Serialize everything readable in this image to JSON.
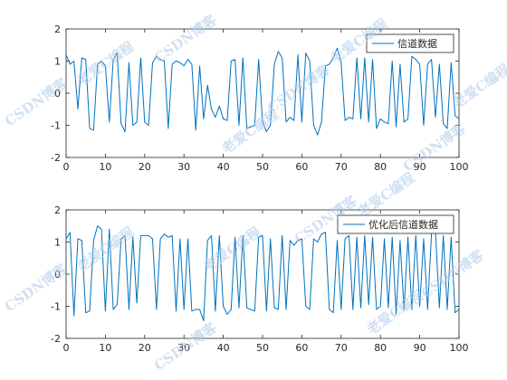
{
  "chart_data": [
    {
      "type": "line",
      "xlim": [
        0,
        100
      ],
      "ylim": [
        -2,
        2
      ],
      "xticks": [
        0,
        10,
        20,
        30,
        40,
        50,
        60,
        70,
        80,
        90,
        100
      ],
      "yticks": [
        -2,
        -1,
        0,
        1,
        2
      ],
      "grid": false,
      "legend_position": "top-right",
      "series": [
        {
          "name": "信道数据",
          "color": "#0072bd",
          "x": [
            0,
            1,
            2,
            3,
            4,
            5,
            6,
            7,
            8,
            9,
            10,
            11,
            12,
            13,
            14,
            15,
            16,
            17,
            18,
            19,
            20,
            21,
            22,
            23,
            24,
            25,
            26,
            27,
            28,
            29,
            30,
            31,
            32,
            33,
            34,
            35,
            36,
            37,
            38,
            39,
            40,
            41,
            42,
            43,
            44,
            45,
            46,
            47,
            48,
            49,
            50,
            51,
            52,
            53,
            54,
            55,
            56,
            57,
            58,
            59,
            60,
            61,
            62,
            63,
            64,
            65,
            66,
            67,
            68,
            69,
            70,
            71,
            72,
            73,
            74,
            75,
            76,
            77,
            78,
            79,
            80,
            81,
            82,
            83,
            84,
            85,
            86,
            87,
            88,
            89,
            90,
            91,
            92,
            93,
            94,
            95,
            96,
            97,
            98,
            99,
            100
          ],
          "y": [
            1.2,
            0.9,
            1.0,
            -0.5,
            1.1,
            1.05,
            -1.1,
            -1.15,
            0.9,
            1.0,
            0.85,
            -0.9,
            1.05,
            1.25,
            -0.95,
            -1.2,
            0.95,
            -1.0,
            -0.9,
            1.1,
            -0.9,
            -1.0,
            0.95,
            1.15,
            1.05,
            1.0,
            -1.1,
            0.9,
            1.0,
            0.95,
            0.85,
            1.05,
            0.9,
            -1.15,
            0.85,
            -0.8,
            0.25,
            -0.5,
            -0.75,
            -0.4,
            -0.8,
            -0.85,
            1.0,
            1.05,
            -1.0,
            1.1,
            -1.1,
            -1.05,
            -1.0,
            1.05,
            -0.9,
            -1.2,
            -1.0,
            0.9,
            1.3,
            1.1,
            -0.9,
            -0.75,
            -0.85,
            1.2,
            -0.9,
            1.25,
            1.0,
            -1.0,
            -1.3,
            -0.9,
            0.85,
            0.9,
            1.1,
            1.4,
            0.95,
            -0.85,
            -0.75,
            -0.8,
            1.1,
            -0.8,
            1.1,
            -0.9,
            1.05,
            -1.1,
            -0.8,
            -0.9,
            -0.95,
            1.0,
            -1.05,
            0.9,
            -0.9,
            -0.8,
            1.15,
            1.05,
            0.9,
            -1.0,
            0.9,
            1.05,
            -0.75,
            0.9,
            -0.95,
            -1.1,
            0.95,
            -0.7,
            -0.8
          ]
        }
      ]
    },
    {
      "type": "line",
      "xlim": [
        0,
        100
      ],
      "ylim": [
        -2,
        2
      ],
      "xticks": [
        0,
        10,
        20,
        30,
        40,
        50,
        60,
        70,
        80,
        90,
        100
      ],
      "yticks": [
        -2,
        -1,
        0,
        1,
        2
      ],
      "grid": false,
      "legend_position": "top-right",
      "series": [
        {
          "name": "优化后信道数据",
          "color": "#0072bd",
          "x": [
            0,
            1,
            2,
            3,
            4,
            5,
            6,
            7,
            8,
            9,
            10,
            11,
            12,
            13,
            14,
            15,
            16,
            17,
            18,
            19,
            20,
            21,
            22,
            23,
            24,
            25,
            26,
            27,
            28,
            29,
            30,
            31,
            32,
            33,
            34,
            35,
            36,
            37,
            38,
            39,
            40,
            41,
            42,
            43,
            44,
            45,
            46,
            47,
            48,
            49,
            50,
            51,
            52,
            53,
            54,
            55,
            56,
            57,
            58,
            59,
            60,
            61,
            62,
            63,
            64,
            65,
            66,
            67,
            68,
            69,
            70,
            71,
            72,
            73,
            74,
            75,
            76,
            77,
            78,
            79,
            80,
            81,
            82,
            83,
            84,
            85,
            86,
            87,
            88,
            89,
            90,
            91,
            92,
            93,
            94,
            95,
            96,
            97,
            98,
            99,
            100
          ],
          "y": [
            1.1,
            1.3,
            -1.3,
            1.1,
            1.05,
            -1.2,
            -1.15,
            1.05,
            1.5,
            1.4,
            -1.15,
            1.4,
            -1.1,
            -0.95,
            1.1,
            1.2,
            -1.1,
            1.15,
            -0.9,
            1.2,
            1.2,
            1.2,
            1.1,
            -1.1,
            1.1,
            1.25,
            1.15,
            1.2,
            -1.15,
            1.1,
            -1.1,
            1.1,
            -1.15,
            -1.1,
            -1.1,
            -1.45,
            1.05,
            1.2,
            -1.15,
            1.2,
            -1.0,
            -1.25,
            -1.1,
            1.15,
            -1.05,
            1.2,
            -1.05,
            -1.1,
            -1.15,
            1.15,
            1.2,
            -1.15,
            1.1,
            -1.05,
            -1.1,
            1.2,
            -1.1,
            1.05,
            0.9,
            1.05,
            1.1,
            -1.0,
            -1.1,
            1.1,
            1.0,
            1.25,
            1.3,
            -1.1,
            -1.2,
            1.05,
            -1.1,
            1.1,
            1.2,
            -1.1,
            1.15,
            -1.05,
            1.2,
            -0.95,
            1.15,
            -1.1,
            -1.0,
            1.1,
            -1.05,
            1.15,
            -1.25,
            1.05,
            -1.1,
            1.15,
            -1.1,
            1.2,
            -1.0,
            1.1,
            -1.1,
            1.25,
            1.35,
            -1.05,
            1.2,
            -1.1,
            1.15,
            -1.2,
            -1.1
          ]
        }
      ]
    }
  ],
  "watermark": {
    "lines": [
      "CSDN博客",
      "老爱C编程"
    ]
  }
}
